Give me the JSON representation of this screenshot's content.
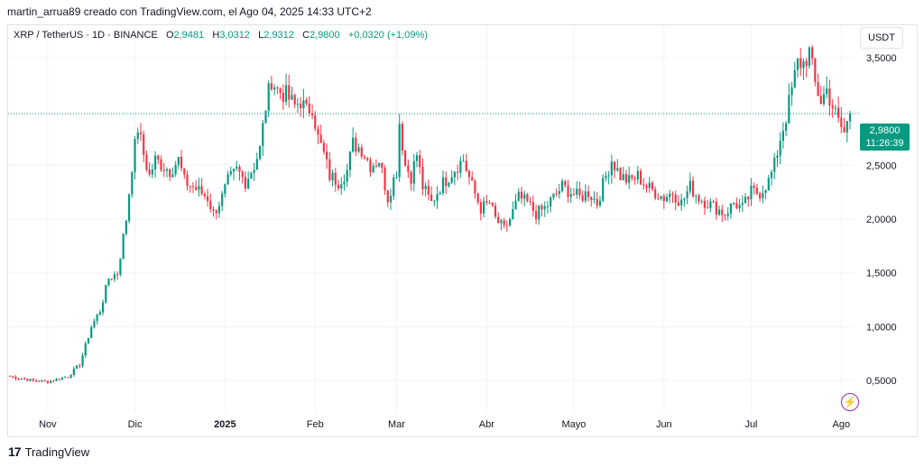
{
  "header": {
    "credit": "martin_arrua89 creado con TradingView.com, el Ago 04, 2025 14:33 UTC+2"
  },
  "legend": {
    "symbol": "XRP / TetherUS · 1D · BINANCE",
    "open_key": "O",
    "open": "2,9481",
    "high_key": "H",
    "high": "3,0312",
    "low_key": "L",
    "low": "2,9312",
    "close_key": "C",
    "close": "2,9800",
    "change": "+0,0320 (+1,09%)"
  },
  "currency_button": "USDT",
  "price_tag": {
    "price": "2,9800",
    "countdown": "11:26:39",
    "color": "#089981"
  },
  "footer": {
    "brand": "TradingView",
    "logo_icon": "tradingview-logo-icon"
  },
  "bolt_icon": "lightning-icon",
  "colors": {
    "up": "#089981",
    "down": "#f23645",
    "grid": "#f0f3fa",
    "last_price_line": "#089981"
  },
  "chart_data": {
    "type": "candlestick",
    "symbol": "XRP / TetherUS",
    "interval": "1D",
    "exchange": "BINANCE",
    "ylim": [
      0.2,
      3.8
    ],
    "y_ticks": [
      {
        "value": 0.5,
        "label": "0,5000"
      },
      {
        "value": 1.0,
        "label": "1,0000"
      },
      {
        "value": 1.5,
        "label": "1,5000"
      },
      {
        "value": 2.0,
        "label": "2,0000"
      },
      {
        "value": 2.5,
        "label": "2,5000"
      },
      {
        "value": 3.5,
        "label": "3,5000"
      }
    ],
    "x_ticks": [
      {
        "day": 13,
        "label": "Nov",
        "bold": false
      },
      {
        "day": 43,
        "label": "Dic",
        "bold": false
      },
      {
        "day": 74,
        "label": "2025",
        "bold": true
      },
      {
        "day": 105,
        "label": "Feb",
        "bold": false
      },
      {
        "day": 133,
        "label": "Mar",
        "bold": false
      },
      {
        "day": 164,
        "label": "Abr",
        "bold": false
      },
      {
        "day": 194,
        "label": "Mayo",
        "bold": false
      },
      {
        "day": 225,
        "label": "Jun",
        "bold": false
      },
      {
        "day": 255,
        "label": "Jul",
        "bold": false
      },
      {
        "day": 286,
        "label": "Ago",
        "bold": false
      }
    ],
    "last_price": 2.98,
    "day_range": [
      0,
      289
    ],
    "close_anchors": [
      [
        0,
        0.54
      ],
      [
        8,
        0.5
      ],
      [
        13,
        0.49
      ],
      [
        20,
        0.54
      ],
      [
        24,
        0.65
      ],
      [
        28,
        1.0
      ],
      [
        31,
        1.15
      ],
      [
        34,
        1.45
      ],
      [
        37,
        1.5
      ],
      [
        40,
        2.0
      ],
      [
        42,
        2.5
      ],
      [
        44,
        2.85
      ],
      [
        46,
        2.6
      ],
      [
        48,
        2.4
      ],
      [
        50,
        2.55
      ],
      [
        55,
        2.45
      ],
      [
        58,
        2.55
      ],
      [
        60,
        2.35
      ],
      [
        63,
        2.3
      ],
      [
        68,
        2.2
      ],
      [
        70,
        2.05
      ],
      [
        73,
        2.2
      ],
      [
        75,
        2.35
      ],
      [
        78,
        2.45
      ],
      [
        81,
        2.35
      ],
      [
        84,
        2.5
      ],
      [
        86,
        2.65
      ],
      [
        88,
        3.05
      ],
      [
        90,
        3.3
      ],
      [
        92,
        3.2
      ],
      [
        95,
        3.15
      ],
      [
        98,
        3.05
      ],
      [
        100,
        3.1
      ],
      [
        102,
        3.0
      ],
      [
        104,
        3.05
      ],
      [
        106,
        2.75
      ],
      [
        108,
        2.6
      ],
      [
        110,
        2.4
      ],
      [
        113,
        2.35
      ],
      [
        116,
        2.45
      ],
      [
        118,
        2.7
      ],
      [
        121,
        2.65
      ],
      [
        124,
        2.5
      ],
      [
        127,
        2.55
      ],
      [
        130,
        2.2
      ],
      [
        133,
        2.45
      ],
      [
        134,
        2.9
      ],
      [
        136,
        2.5
      ],
      [
        138,
        2.4
      ],
      [
        140,
        2.6
      ],
      [
        142,
        2.3
      ],
      [
        145,
        2.15
      ],
      [
        148,
        2.3
      ],
      [
        151,
        2.4
      ],
      [
        154,
        2.5
      ],
      [
        156,
        2.55
      ],
      [
        159,
        2.3
      ],
      [
        162,
        2.1
      ],
      [
        165,
        2.15
      ],
      [
        167,
        2.0
      ],
      [
        170,
        1.9
      ],
      [
        172,
        2.0
      ],
      [
        175,
        2.2
      ],
      [
        178,
        2.15
      ],
      [
        181,
        2.05
      ],
      [
        184,
        2.1
      ],
      [
        187,
        2.2
      ],
      [
        190,
        2.3
      ],
      [
        193,
        2.25
      ],
      [
        196,
        2.2
      ],
      [
        199,
        2.25
      ],
      [
        202,
        2.15
      ],
      [
        205,
        2.4
      ],
      [
        207,
        2.55
      ],
      [
        210,
        2.4
      ],
      [
        213,
        2.35
      ],
      [
        216,
        2.4
      ],
      [
        219,
        2.3
      ],
      [
        222,
        2.25
      ],
      [
        225,
        2.2
      ],
      [
        228,
        2.25
      ],
      [
        231,
        2.15
      ],
      [
        234,
        2.3
      ],
      [
        237,
        2.2
      ],
      [
        240,
        2.15
      ],
      [
        243,
        2.1
      ],
      [
        246,
        2.05
      ],
      [
        249,
        2.15
      ],
      [
        252,
        2.1
      ],
      [
        255,
        2.25
      ],
      [
        258,
        2.25
      ],
      [
        261,
        2.35
      ],
      [
        263,
        2.5
      ],
      [
        265,
        2.75
      ],
      [
        267,
        2.95
      ],
      [
        269,
        3.2
      ],
      [
        271,
        3.45
      ],
      [
        273,
        3.45
      ],
      [
        275,
        3.55
      ],
      [
        277,
        3.25
      ],
      [
        279,
        3.1
      ],
      [
        281,
        3.2
      ],
      [
        283,
        3.05
      ],
      [
        285,
        2.9
      ],
      [
        287,
        2.8
      ],
      [
        289,
        2.98
      ]
    ]
  }
}
